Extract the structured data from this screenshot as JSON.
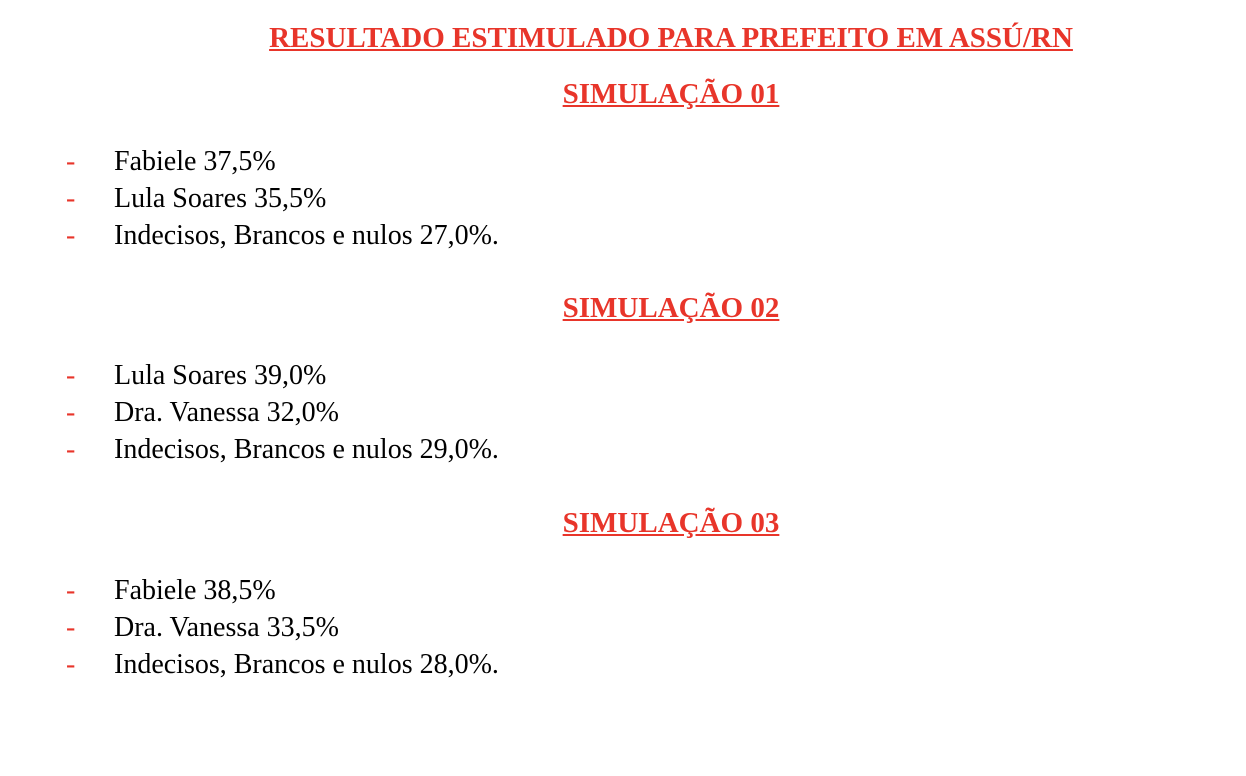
{
  "title": "RESULTADO ESTIMULADO PARA PREFEITO EM ASSÚ/RN",
  "simulations": [
    {
      "heading": "SIMULAÇÃO 01",
      "items": [
        "Fabiele 37,5%",
        "Lula Soares 35,5%",
        "Indecisos, Brancos e nulos 27,0%."
      ]
    },
    {
      "heading": "SIMULAÇÃO 02",
      "items": [
        "Lula Soares 39,0%",
        "Dra. Vanessa 32,0%",
        "Indecisos, Brancos e nulos 29,0%."
      ]
    },
    {
      "heading": "SIMULAÇÃO 03",
      "items": [
        "Fabiele 38,5%",
        "Dra. Vanessa 33,5%",
        "Indecisos, Brancos e nulos 28,0%."
      ]
    }
  ],
  "bullet": "-",
  "accent_color": "#e8352a"
}
